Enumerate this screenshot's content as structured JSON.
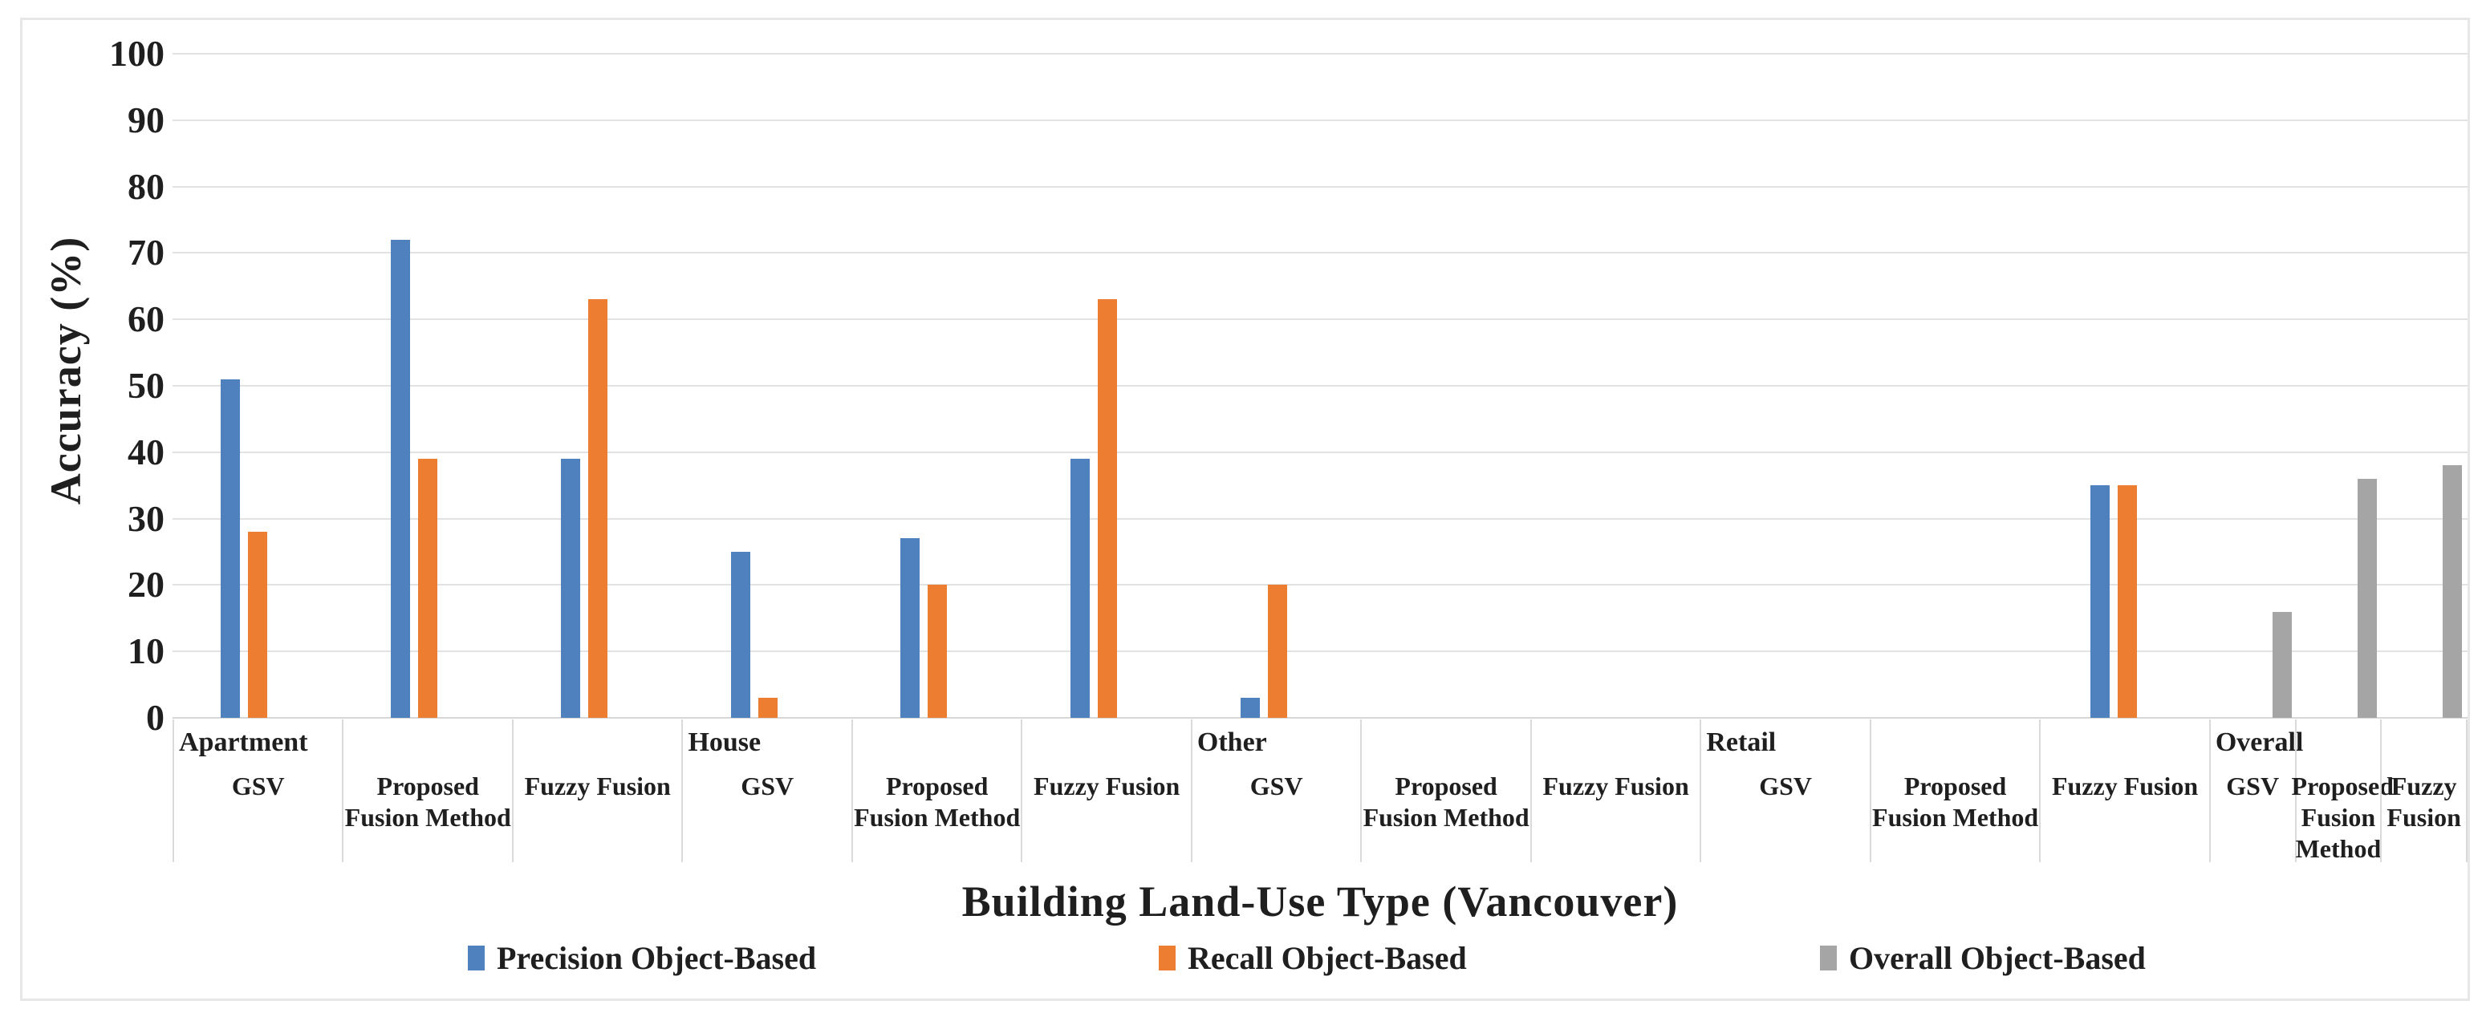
{
  "chart_data": {
    "type": "bar",
    "title": "",
    "xlabel": "Building Land-Use Type (Vancouver)",
    "ylabel": "Accuracy (%)",
    "ylim": [
      0,
      100
    ],
    "yticks": [
      0,
      10,
      20,
      30,
      40,
      50,
      60,
      70,
      80,
      90,
      100
    ],
    "grid": "horizontal",
    "legend_position": "bottom",
    "groups": [
      "Apartment",
      "House",
      "Other",
      "Retail",
      "Overall"
    ],
    "series": [
      {
        "key": "precision",
        "name": "Precision Object-Based",
        "color": "#4E81BD"
      },
      {
        "key": "recall",
        "name": "Recall Object-Based",
        "color": "#ED7D31"
      },
      {
        "key": "overall",
        "name": "Overall Object-Based",
        "color": "#A5A5A5"
      }
    ],
    "categories": [
      {
        "group": "Apartment",
        "method": "GSV",
        "width": "wide",
        "precision": 51,
        "recall": 28,
        "overall": null
      },
      {
        "group": "",
        "method": "Proposed Fusion Method",
        "width": "wide",
        "precision": 72,
        "recall": 39,
        "overall": null
      },
      {
        "group": "",
        "method": "Fuzzy Fusion",
        "width": "wide",
        "precision": 39,
        "recall": 63,
        "overall": null
      },
      {
        "group": "House",
        "method": "GSV",
        "width": "wide",
        "precision": 25,
        "recall": 3,
        "overall": null
      },
      {
        "group": "",
        "method": "Proposed Fusion Method",
        "width": "wide",
        "precision": 27,
        "recall": 20,
        "overall": null
      },
      {
        "group": "",
        "method": "Fuzzy Fusion",
        "width": "wide",
        "precision": 39,
        "recall": 63,
        "overall": null
      },
      {
        "group": "Other",
        "method": "GSV",
        "width": "wide",
        "precision": 3,
        "recall": 20,
        "overall": null
      },
      {
        "group": "",
        "method": "Proposed Fusion Method",
        "width": "wide",
        "precision": 0,
        "recall": 0,
        "overall": null
      },
      {
        "group": "",
        "method": "Fuzzy Fusion",
        "width": "wide",
        "precision": 0,
        "recall": 0,
        "overall": null
      },
      {
        "group": "Retail",
        "method": "GSV",
        "width": "wide",
        "precision": 0,
        "recall": 0,
        "overall": null
      },
      {
        "group": "",
        "method": "Proposed Fusion Method",
        "width": "wide",
        "precision": 0,
        "recall": 0,
        "overall": null
      },
      {
        "group": "",
        "method": "Fuzzy Fusion",
        "width": "wide",
        "precision": 35,
        "recall": 35,
        "overall": null
      },
      {
        "group": "Overall",
        "method": "GSV",
        "width": "narrow",
        "precision": null,
        "recall": null,
        "overall": 16
      },
      {
        "group": "",
        "method": "Proposed Fusion Method",
        "width": "narrow",
        "precision": null,
        "recall": null,
        "overall": 36
      },
      {
        "group": "",
        "method": "Fuzzy Fusion",
        "width": "narrow",
        "precision": null,
        "recall": null,
        "overall": 38
      }
    ]
  }
}
